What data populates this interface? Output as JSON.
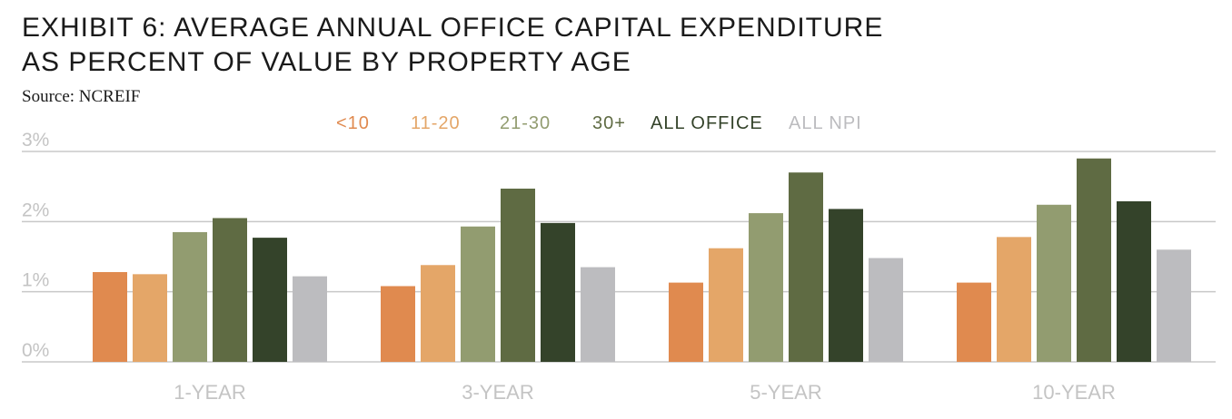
{
  "title_line1": "EXHIBIT 6: AVERAGE ANNUAL OFFICE CAPITAL EXPENDITURE",
  "title_line2": "AS PERCENT OF VALUE BY PROPERTY AGE",
  "source": "Source: NCREIF",
  "chart_data": {
    "type": "bar",
    "categories": [
      "1-YEAR",
      "3-YEAR",
      "5-YEAR",
      "10-YEAR"
    ],
    "series": [
      {
        "name": "<10",
        "color": "#e08a4f",
        "values": [
          1.28,
          1.08,
          1.13,
          1.13
        ]
      },
      {
        "name": "11-20",
        "color": "#e4a668",
        "values": [
          1.25,
          1.38,
          1.62,
          1.78
        ]
      },
      {
        "name": "21-30",
        "color": "#929c70",
        "values": [
          1.85,
          1.93,
          2.12,
          2.24
        ]
      },
      {
        "name": "30+",
        "color": "#5f6b43",
        "values": [
          2.05,
          2.47,
          2.7,
          2.9
        ]
      },
      {
        "name": "ALL OFFICE",
        "color": "#34432a",
        "values": [
          1.77,
          1.98,
          2.18,
          2.29
        ]
      },
      {
        "name": "ALL NPI",
        "color": "#bcbcbf",
        "values": [
          1.22,
          1.35,
          1.48,
          1.6
        ]
      }
    ],
    "yticks": [
      "0%",
      "1%",
      "2%",
      "3%"
    ],
    "ylim": [
      0,
      3
    ],
    "grid": true,
    "legend": "top-center"
  }
}
